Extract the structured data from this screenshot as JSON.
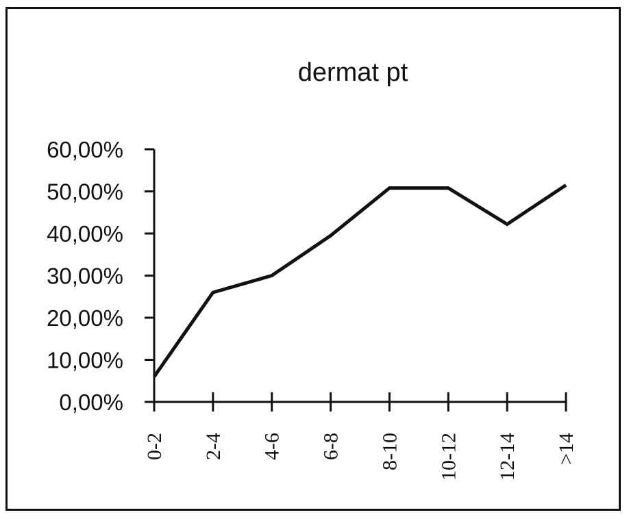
{
  "chart_data": {
    "type": "line",
    "title": "dermat pt",
    "xlabel": "",
    "ylabel": "",
    "categories": [
      "0-2",
      "2-4",
      "4-6",
      "6-8",
      "8-10",
      "10-12",
      "12-14",
      ">14"
    ],
    "y_tick_labels": [
      "0,00%",
      "10,00%",
      "20,00%",
      "30,00%",
      "40,00%",
      "50,00%",
      "60,00%"
    ],
    "ylim": [
      0,
      60
    ],
    "grid": false,
    "legend": "none",
    "series": [
      {
        "values": [
          6.0,
          26.0,
          30.0,
          39.5,
          50.8,
          50.8,
          42.2,
          51.5
        ]
      }
    ],
    "line_color": "#111111"
  }
}
